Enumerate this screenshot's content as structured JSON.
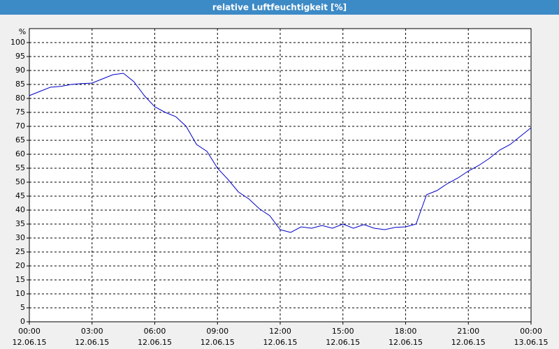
{
  "chart_data": {
    "type": "line",
    "title": "relative Luftfeuchtigkeit [%]",
    "y_label": "%",
    "x": [
      0,
      0.5,
      1,
      1.5,
      2,
      2.5,
      3,
      3.5,
      4,
      4.5,
      5,
      5.5,
      6,
      6.5,
      7,
      7.5,
      8,
      8.5,
      9,
      9.5,
      10,
      10.5,
      11,
      11.5,
      12,
      12.5,
      13,
      13.5,
      14,
      14.5,
      15,
      15.5,
      16,
      16.5,
      17,
      17.5,
      18,
      18.5,
      19,
      19.5,
      20,
      20.5,
      21,
      21.5,
      22,
      22.5,
      23,
      23.5,
      24
    ],
    "series": [
      {
        "name": "relative Luftfeuchtigkeit",
        "color": "#0000c8",
        "values": [
          81,
          82.5,
          84,
          84.3,
          85,
          85.3,
          85.5,
          87,
          88.5,
          89,
          86,
          81,
          77,
          75,
          73.5,
          70,
          63.5,
          61,
          55,
          51,
          46.5,
          44,
          40.5,
          38,
          33,
          32,
          34,
          33.5,
          34.5,
          33.5,
          35,
          33.5,
          34.8,
          33.5,
          33,
          33.8,
          34,
          35,
          45.5,
          47,
          49.5,
          51.5,
          54,
          56,
          58.5,
          61.5,
          63.5,
          66.5,
          69.5
        ]
      }
    ],
    "xlim": [
      0,
      24
    ],
    "xticks": [
      {
        "value": 0,
        "label": "00:00"
      },
      {
        "value": 3,
        "label": "03:00"
      },
      {
        "value": 6,
        "label": "06:00"
      },
      {
        "value": 9,
        "label": "09:00"
      },
      {
        "value": 12,
        "label": "12:00"
      },
      {
        "value": 15,
        "label": "15:00"
      },
      {
        "value": 18,
        "label": "18:00"
      },
      {
        "value": 21,
        "label": "21:00"
      },
      {
        "value": 24,
        "label": "00:00"
      }
    ],
    "xtick_dates": [
      "12.06.15",
      "12.06.15",
      "12.06.15",
      "12.06.15",
      "12.06.15",
      "12.06.15",
      "12.06.15",
      "12.06.15",
      "13.06.15"
    ],
    "ylim": [
      0,
      105
    ],
    "yticks": [
      0,
      5,
      10,
      15,
      20,
      25,
      30,
      35,
      40,
      45,
      50,
      55,
      60,
      65,
      70,
      75,
      80,
      85,
      90,
      95,
      100
    ],
    "grid": true
  }
}
